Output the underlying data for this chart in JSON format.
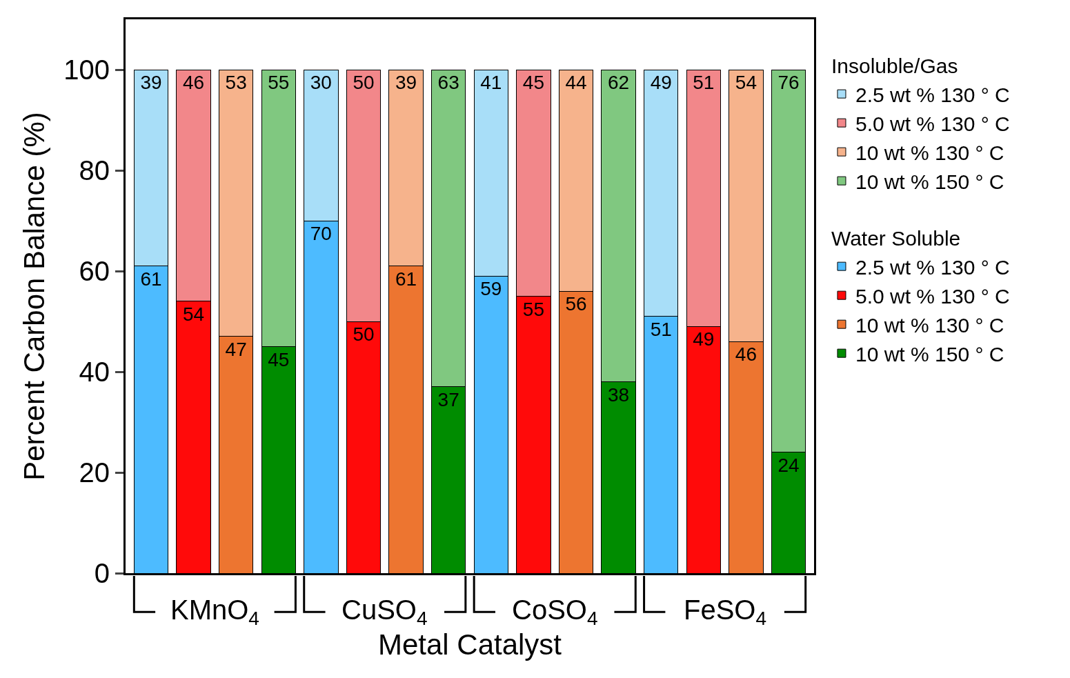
{
  "chart_data": {
    "type": "bar",
    "stacked": true,
    "data_labels": true,
    "legend": "right",
    "xlabel": "Metal Catalyst",
    "ylabel": "Percent Carbon Balance (%)",
    "legend_title": [
      "Insoluble/Gas",
      "Water Soluble"
    ],
    "annotations": [
      "KMnO$_{4}$",
      "CuSO$_{4}$",
      "CoSO$_{4}$",
      "FeSO$_{4}$"
    ],
    "categories": [
      null,
      null,
      null,
      null,
      null,
      null,
      null,
      null,
      null,
      null,
      null,
      null,
      null,
      null,
      null,
      null
    ],
    "ylim": [
      0,
      110
    ],
    "yticks": [
      0,
      20,
      40,
      60,
      80,
      100
    ],
    "series": [
      {
        "name": "2.5 wt % 130 ° C",
        "color": "#4dbbff",
        "values": [
          61,
          null,
          null,
          null,
          70,
          null,
          null,
          null,
          59,
          null,
          null,
          null,
          51,
          null,
          null,
          null
        ]
      },
      {
        "name": "5.0 wt % 130 ° C",
        "color": "#ff0a0a",
        "values": [
          null,
          54,
          null,
          null,
          null,
          50,
          null,
          null,
          null,
          55,
          null,
          null,
          null,
          49,
          null,
          null
        ]
      },
      {
        "name": "10 wt % 130 ° C",
        "color": "#ed7530",
        "values": [
          null,
          null,
          47,
          null,
          null,
          null,
          61,
          null,
          null,
          null,
          56,
          null,
          null,
          null,
          46,
          null
        ]
      },
      {
        "name": "10 wt % 150 ° C",
        "color": "#008c00",
        "values": [
          null,
          null,
          null,
          45,
          null,
          null,
          null,
          37,
          null,
          null,
          null,
          38,
          null,
          null,
          null,
          24
        ]
      },
      {
        "name": "2.5 wt % 130 ° C",
        "color": "#a8def8",
        "values": [
          39,
          null,
          null,
          null,
          30,
          null,
          null,
          null,
          41,
          null,
          null,
          null,
          49,
          null,
          null,
          null
        ]
      },
      {
        "name": "5.0 wt % 130 ° C",
        "color": "#f2878a",
        "values": [
          null,
          46,
          null,
          null,
          null,
          50,
          null,
          null,
          null,
          45,
          null,
          null,
          null,
          51,
          null,
          null
        ]
      },
      {
        "name": "10 wt % 130 ° C",
        "color": "#f6b38c",
        "values": [
          null,
          null,
          53,
          null,
          null,
          null,
          39,
          null,
          null,
          null,
          44,
          null,
          null,
          null,
          54,
          null
        ]
      },
      {
        "name": "10 wt % 150 ° C",
        "color": "#80c880",
        "values": [
          null,
          null,
          null,
          55,
          null,
          null,
          null,
          63,
          null,
          null,
          null,
          62,
          null,
          null,
          null,
          76
        ]
      }
    ]
  }
}
